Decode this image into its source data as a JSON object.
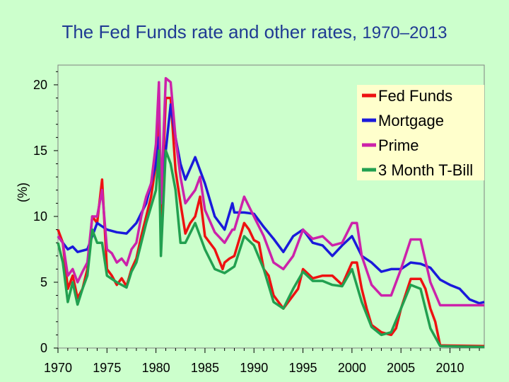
{
  "chart_data": {
    "type": "line",
    "title": "The Fed Funds rate and other rates,",
    "title_years": "1970–2013",
    "xlabel": "",
    "ylabel": "(%)",
    "xlim": [
      1970,
      2013.5
    ],
    "ylim": [
      0,
      21.5
    ],
    "xticks": [
      1970,
      1975,
      1980,
      1985,
      1990,
      1995,
      2000,
      2005,
      2010
    ],
    "yticks": [
      0,
      5,
      10,
      15,
      20
    ],
    "legend_position": "top-right",
    "series": [
      {
        "name": "Fed Funds",
        "color": "#ee1111",
        "points": [
          [
            1970,
            9
          ],
          [
            1970.5,
            8
          ],
          [
            1971,
            4.5
          ],
          [
            1971.5,
            5.5
          ],
          [
            1972,
            3.8
          ],
          [
            1972.5,
            4.5
          ],
          [
            1973,
            6
          ],
          [
            1973.5,
            10
          ],
          [
            1974,
            9.5
          ],
          [
            1974.5,
            12.8
          ],
          [
            1975,
            6
          ],
          [
            1975.5,
            5.5
          ],
          [
            1976,
            4.8
          ],
          [
            1976.5,
            5.3
          ],
          [
            1977,
            4.7
          ],
          [
            1977.5,
            6
          ],
          [
            1978,
            6.8
          ],
          [
            1978.5,
            8.5
          ],
          [
            1979,
            10
          ],
          [
            1979.5,
            11.5
          ],
          [
            1980,
            14
          ],
          [
            1980.3,
            17.6
          ],
          [
            1980.5,
            9.5
          ],
          [
            1981,
            19
          ],
          [
            1981.5,
            19
          ],
          [
            1982,
            13.5
          ],
          [
            1982.5,
            11
          ],
          [
            1983,
            8.7
          ],
          [
            1983.5,
            9.5
          ],
          [
            1984,
            10
          ],
          [
            1984.5,
            11.5
          ],
          [
            1985,
            8.5
          ],
          [
            1986,
            7.5
          ],
          [
            1986.8,
            6
          ],
          [
            1987,
            6.5
          ],
          [
            1987.5,
            6.8
          ],
          [
            1988,
            7
          ],
          [
            1989,
            9.5
          ],
          [
            1989.5,
            9
          ],
          [
            1990,
            8.2
          ],
          [
            1990.5,
            8
          ],
          [
            1991,
            6
          ],
          [
            1991.5,
            5.5
          ],
          [
            1992,
            4
          ],
          [
            1993,
            3
          ],
          [
            1994,
            4
          ],
          [
            1994.5,
            4.5
          ],
          [
            1995,
            6
          ],
          [
            1996,
            5.3
          ],
          [
            1997,
            5.5
          ],
          [
            1998,
            5.5
          ],
          [
            1999,
            4.8
          ],
          [
            2000,
            6.5
          ],
          [
            2000.5,
            6.5
          ],
          [
            2001,
            4.5
          ],
          [
            2001.5,
            3
          ],
          [
            2002,
            1.75
          ],
          [
            2003,
            1.2
          ],
          [
            2004,
            1
          ],
          [
            2004.5,
            1.5
          ],
          [
            2005,
            3
          ],
          [
            2006,
            5.25
          ],
          [
            2007,
            5.25
          ],
          [
            2007.5,
            4.5
          ],
          [
            2008,
            3
          ],
          [
            2008.5,
            2
          ],
          [
            2009,
            0.2
          ],
          [
            2013.5,
            0.15
          ]
        ]
      },
      {
        "name": "Mortgage",
        "color": "#1a1adb",
        "points": [
          [
            1970,
            8.5
          ],
          [
            1971,
            7.5
          ],
          [
            1971.5,
            7.7
          ],
          [
            1972,
            7.3
          ],
          [
            1973,
            7.5
          ],
          [
            1973.5,
            8.5
          ],
          [
            1974,
            9.5
          ],
          [
            1975,
            9
          ],
          [
            1976,
            8.8
          ],
          [
            1977,
            8.7
          ],
          [
            1978,
            9.5
          ],
          [
            1979,
            11
          ],
          [
            1980,
            14
          ],
          [
            1980.3,
            16
          ],
          [
            1980.5,
            12.5
          ],
          [
            1981,
            15
          ],
          [
            1981.5,
            18.5
          ],
          [
            1982,
            16
          ],
          [
            1982.5,
            14
          ],
          [
            1983,
            12.8
          ],
          [
            1984,
            14.5
          ],
          [
            1985,
            12.5
          ],
          [
            1986,
            10
          ],
          [
            1987,
            9
          ],
          [
            1987.8,
            11
          ],
          [
            1988,
            10.3
          ],
          [
            1989,
            10.3
          ],
          [
            1990,
            10.2
          ],
          [
            1991,
            9.2
          ],
          [
            1992,
            8.3
          ],
          [
            1993,
            7.3
          ],
          [
            1994,
            8.5
          ],
          [
            1995,
            9
          ],
          [
            1996,
            8
          ],
          [
            1997,
            7.8
          ],
          [
            1998,
            7
          ],
          [
            1999,
            7.8
          ],
          [
            2000,
            8.5
          ],
          [
            2001,
            7
          ],
          [
            2002,
            6.5
          ],
          [
            2003,
            5.8
          ],
          [
            2004,
            6
          ],
          [
            2005,
            6
          ],
          [
            2006,
            6.5
          ],
          [
            2007,
            6.4
          ],
          [
            2008,
            6.1
          ],
          [
            2009,
            5.2
          ],
          [
            2010,
            4.8
          ],
          [
            2011,
            4.5
          ],
          [
            2012,
            3.7
          ],
          [
            2013,
            3.4
          ],
          [
            2013.5,
            3.5
          ]
        ]
      },
      {
        "name": "Prime",
        "color": "#cc22aa",
        "points": [
          [
            1970,
            8.5
          ],
          [
            1970.5,
            8
          ],
          [
            1971,
            5.5
          ],
          [
            1971.5,
            6
          ],
          [
            1972,
            5
          ],
          [
            1972.5,
            5.8
          ],
          [
            1973,
            6.5
          ],
          [
            1973.5,
            10
          ],
          [
            1974,
            10
          ],
          [
            1974.5,
            12
          ],
          [
            1975,
            7.5
          ],
          [
            1975.5,
            7.2
          ],
          [
            1976,
            6.5
          ],
          [
            1976.5,
            6.8
          ],
          [
            1977,
            6.3
          ],
          [
            1977.5,
            7.5
          ],
          [
            1978,
            8
          ],
          [
            1978.5,
            10
          ],
          [
            1979,
            11.5
          ],
          [
            1979.5,
            12.5
          ],
          [
            1980,
            15.5
          ],
          [
            1980.3,
            20.2
          ],
          [
            1980.5,
            11
          ],
          [
            1981,
            20.5
          ],
          [
            1981.5,
            20.2
          ],
          [
            1982,
            16
          ],
          [
            1982.5,
            13
          ],
          [
            1983,
            11
          ],
          [
            1984,
            12
          ],
          [
            1984.5,
            13
          ],
          [
            1985,
            10.5
          ],
          [
            1986,
            8.8
          ],
          [
            1987,
            8
          ],
          [
            1987.8,
            9
          ],
          [
            1988,
            9
          ],
          [
            1989,
            11.5
          ],
          [
            1990,
            10
          ],
          [
            1991,
            8.5
          ],
          [
            1992,
            6.5
          ],
          [
            1993,
            6
          ],
          [
            1994,
            7
          ],
          [
            1995,
            9
          ],
          [
            1996,
            8.3
          ],
          [
            1997,
            8.5
          ],
          [
            1998,
            7.8
          ],
          [
            1999,
            8
          ],
          [
            2000,
            9.5
          ],
          [
            2000.5,
            9.5
          ],
          [
            2001,
            7
          ],
          [
            2002,
            4.8
          ],
          [
            2003,
            4
          ],
          [
            2004,
            4
          ],
          [
            2005,
            6
          ],
          [
            2006,
            8.25
          ],
          [
            2007,
            8.25
          ],
          [
            2008,
            5
          ],
          [
            2009,
            3.25
          ],
          [
            2013.5,
            3.25
          ]
        ]
      },
      {
        "name": "3 Month T-Bill",
        "color": "#22a050",
        "points": [
          [
            1970,
            8
          ],
          [
            1970.5,
            6.5
          ],
          [
            1971,
            3.5
          ],
          [
            1971.5,
            5
          ],
          [
            1972,
            3.3
          ],
          [
            1972.5,
            4.5
          ],
          [
            1973,
            5.5
          ],
          [
            1973.5,
            9
          ],
          [
            1974,
            8
          ],
          [
            1974.5,
            8
          ],
          [
            1975,
            5.5
          ],
          [
            1976,
            5
          ],
          [
            1977,
            4.6
          ],
          [
            1977.5,
            5.8
          ],
          [
            1978,
            6.5
          ],
          [
            1979,
            9.5
          ],
          [
            1980,
            12
          ],
          [
            1980.3,
            15
          ],
          [
            1980.5,
            7
          ],
          [
            1981,
            15
          ],
          [
            1981.5,
            14
          ],
          [
            1982,
            12
          ],
          [
            1982.5,
            8
          ],
          [
            1983,
            8
          ],
          [
            1984,
            9.5
          ],
          [
            1985,
            7.5
          ],
          [
            1986,
            6
          ],
          [
            1987,
            5.7
          ],
          [
            1988,
            6.2
          ],
          [
            1989,
            8.5
          ],
          [
            1990,
            7.8
          ],
          [
            1991,
            6
          ],
          [
            1992,
            3.5
          ],
          [
            1993,
            3
          ],
          [
            1994,
            4.5
          ],
          [
            1995,
            5.8
          ],
          [
            1996,
            5.1
          ],
          [
            1997,
            5.1
          ],
          [
            1998,
            4.8
          ],
          [
            1999,
            4.7
          ],
          [
            2000,
            6
          ],
          [
            2001,
            3.5
          ],
          [
            2002,
            1.6
          ],
          [
            2003,
            1
          ],
          [
            2004,
            1.2
          ],
          [
            2005,
            3
          ],
          [
            2006,
            4.8
          ],
          [
            2007,
            4.5
          ],
          [
            2008,
            1.5
          ],
          [
            2009,
            0.15
          ],
          [
            2013.5,
            0.08
          ]
        ]
      }
    ]
  }
}
